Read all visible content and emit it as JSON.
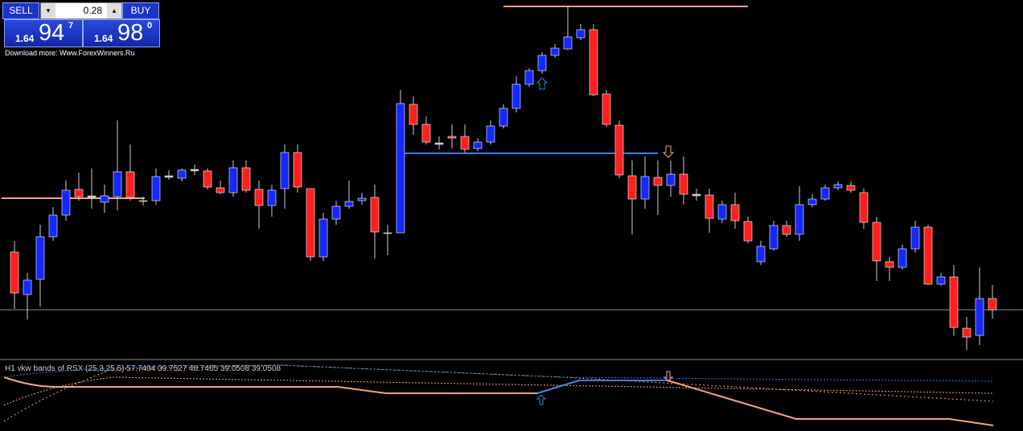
{
  "panel": {
    "sell": "SELL",
    "lot": "0.28",
    "buy": "BUY",
    "bid": {
      "big": "1.64",
      "pips": "94",
      "point": "7"
    },
    "ask": {
      "big": "1.64",
      "pips": "98",
      "point": "0"
    }
  },
  "watermark": "Download more: Www.ForexWinners.Ru",
  "indicator": {
    "label": "H1 vkw bands of RSX (25,3,25,5) 57.7404 39.7527 48.7465 39.0508 39.0508"
  }
}
